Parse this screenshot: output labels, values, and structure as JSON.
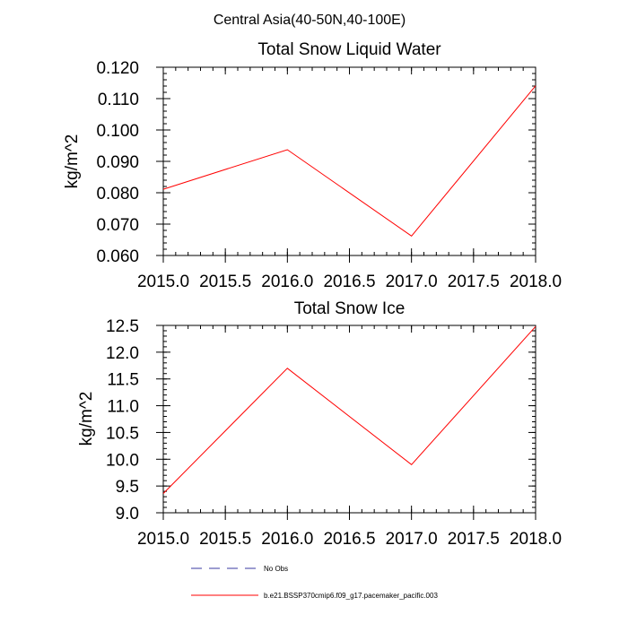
{
  "figure": {
    "suptitle": "Central Asia(40-50N,40-100E)"
  },
  "chart_data": [
    {
      "type": "line",
      "title": "Total Snow Liquid Water",
      "xlabel": "",
      "ylabel": "kg/m^2",
      "xlim": [
        2015.0,
        2018.0
      ],
      "ylim": [
        0.06,
        0.12
      ],
      "xticks": [
        "2015.0",
        "2015.5",
        "2016.0",
        "2016.5",
        "2017.0",
        "2017.5",
        "2018.0"
      ],
      "yticks": [
        "0.060",
        "0.070",
        "0.080",
        "0.090",
        "0.100",
        "0.110",
        "0.120"
      ],
      "grid": false,
      "series": [
        {
          "name": "b.e21.BSSP370cmip6.f09_g17.pacemaker_pacific.003",
          "color": "#ff0000",
          "x": [
            2015.0,
            2016.0,
            2017.0,
            2018.0
          ],
          "values": [
            0.0811,
            0.0937,
            0.0662,
            0.1141
          ]
        }
      ]
    },
    {
      "type": "line",
      "title": "Total Snow Ice",
      "xlabel": "",
      "ylabel": "kg/m^2",
      "xlim": [
        2015.0,
        2018.0
      ],
      "ylim": [
        9.0,
        12.5
      ],
      "xticks": [
        "2015.0",
        "2015.5",
        "2016.0",
        "2016.5",
        "2017.0",
        "2017.5",
        "2018.0"
      ],
      "yticks": [
        "9.0",
        "9.5",
        "10.0",
        "10.5",
        "11.0",
        "11.5",
        "12.0",
        "12.5"
      ],
      "grid": false,
      "series": [
        {
          "name": "b.e21.BSSP370cmip6.f09_g17.pacemaker_pacific.003",
          "color": "#ff0000",
          "x": [
            2015.0,
            2016.0,
            2017.0,
            2018.0
          ],
          "values": [
            9.36,
            11.7,
            9.9,
            12.48
          ]
        }
      ]
    }
  ],
  "legend": {
    "placement": "bottom",
    "items": [
      {
        "label": "No Obs",
        "color": "#3a3aa0",
        "style": "dashed"
      },
      {
        "label": "b.e21.BSSP370cmip6.f09_g17.pacemaker_pacific.003",
        "color": "#ff0000",
        "style": "solid"
      }
    ]
  }
}
